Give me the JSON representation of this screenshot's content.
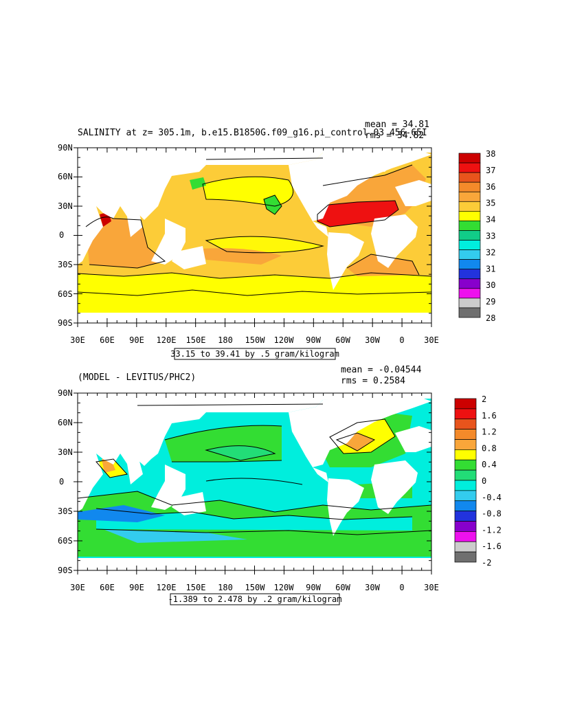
{
  "panels": [
    {
      "title": "SALINITY at z= 305.1m, b.e15.B1850G.f09_g16.pi_control.03 456-65I",
      "stat_mean": "mean = 34.81",
      "stat_rms": "rms = 34.82",
      "range_label": "33.15 to 39.41 by .5 gram/kilogram",
      "y_ticks": [
        "90N",
        "60N",
        "30N",
        "0",
        "30S",
        "60S",
        "90S"
      ],
      "x_ticks": [
        "30E",
        "60E",
        "90E",
        "120E",
        "150E",
        "180",
        "150W",
        "120W",
        "90W",
        "60W",
        "30W",
        "0",
        "30E"
      ],
      "colorbar": {
        "labels": [
          "38",
          "37",
          "36",
          "35",
          "34",
          "33",
          "32",
          "31",
          "30",
          "29",
          "28"
        ],
        "colors": [
          "#cc0000",
          "#ee1111",
          "#e8541c",
          "#f48a2a",
          "#f9a63a",
          "#fccc38",
          "#ffff00",
          "#33dd33",
          "#11cc88",
          "#00eedd",
          "#33ccee",
          "#1188ee",
          "#2233dd",
          "#8800cc",
          "#ee11ee",
          "#cccccc",
          "#6f6f6f"
        ]
      }
    },
    {
      "title": "(MODEL - LEVITUS/PHC2)",
      "stat_mean": "mean = -0.04544",
      "stat_rms": "rms = 0.2584",
      "range_label": "-1.389 to 2.478 by .2 gram/kilogram",
      "y_ticks": [
        "90N",
        "60N",
        "30N",
        "0",
        "30S",
        "60S",
        "90S"
      ],
      "x_ticks": [
        "30E",
        "60E",
        "90E",
        "120E",
        "150E",
        "180",
        "150W",
        "120W",
        "90W",
        "60W",
        "30W",
        "0",
        "30E"
      ],
      "colorbar": {
        "labels": [
          "2",
          "1.6",
          "1.2",
          "0.8",
          "0.4",
          "0",
          "-0.4",
          "-0.8",
          "-1.2",
          "-1.6",
          "-2"
        ],
        "colors": [
          "#cc0000",
          "#ee1111",
          "#e8541c",
          "#f48a2a",
          "#f9a63a",
          "#ffff00",
          "#33dd33",
          "#22dd77",
          "#00eedd",
          "#33ccee",
          "#1188ee",
          "#2233dd",
          "#8800cc",
          "#ee11ee",
          "#cccccc",
          "#6f6f6f"
        ]
      }
    }
  ]
}
